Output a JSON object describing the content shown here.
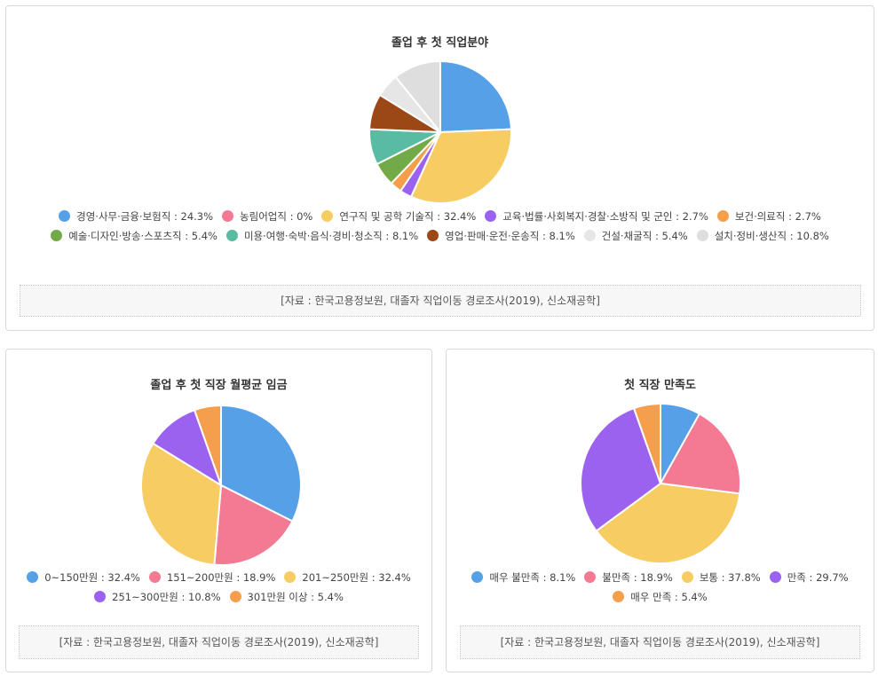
{
  "chart_data": [
    {
      "type": "pie",
      "title": "졸업 후 첫 직업분야",
      "series": [
        {
          "name": "경영·사무·금융·보험직",
          "value": 24.3,
          "color": "#56a0e8"
        },
        {
          "name": "농림어업직",
          "value": 0,
          "color": "#f47a94"
        },
        {
          "name": "연구직 및 공학 기술직",
          "value": 32.4,
          "color": "#f6cc63"
        },
        {
          "name": "교육·법률·사회복지·경찰·소방직 및 군인",
          "value": 2.7,
          "color": "#9b62f0"
        },
        {
          "name": "보건·의료직",
          "value": 2.7,
          "color": "#f59e4c"
        },
        {
          "name": "예술·디자인·방송·스포츠직",
          "value": 5.4,
          "color": "#72aa48"
        },
        {
          "name": "미용·여행·숙박·음식·경비·청소직",
          "value": 8.1,
          "color": "#58bba2"
        },
        {
          "name": "영업·판매·운전·운송직",
          "value": 8.1,
          "color": "#9c4716"
        },
        {
          "name": "건설·채굴직",
          "value": 5.4,
          "color": "#e6e6e6"
        },
        {
          "name": "설치·정비·생산직",
          "value": 10.8,
          "color": "#dedede"
        }
      ],
      "legend_labels": [
        "경영·사무·금융·보험직 : 24.3%",
        "농림어업직 : 0%",
        "연구직 및 공학 기술직 : 32.4%",
        "교육·법률·사회복지·경찰·소방직 및 군인 : 2.7%",
        "보건·의료직 : 2.7%",
        "예술·디자인·방송·스포츠직 : 5.4%",
        "미용·여행·숙박·음식·경비·청소직 : 8.1%",
        "영업·판매·운전·운송직 : 8.1%",
        "건설·채굴직 : 5.4%",
        "설치·정비·생산직 : 10.8%"
      ],
      "legend_position": "bottom",
      "source": "[자료 : 한국고용정보원, 대졸자 직업이동 경로조사(2019), 신소재공학]"
    },
    {
      "type": "pie",
      "title": "졸업 후 첫 직장 월평균 임금",
      "series": [
        {
          "name": "0~150만원",
          "value": 32.4,
          "color": "#56a0e8"
        },
        {
          "name": "151~200만원",
          "value": 18.9,
          "color": "#f47a94"
        },
        {
          "name": "201~250만원",
          "value": 32.4,
          "color": "#f6cc63"
        },
        {
          "name": "251~300만원",
          "value": 10.8,
          "color": "#9b62f0"
        },
        {
          "name": "301만원 이상",
          "value": 5.4,
          "color": "#f59e4c"
        }
      ],
      "legend_labels": [
        "0~150만원 : 32.4%",
        "151~200만원 : 18.9%",
        "201~250만원 : 32.4%",
        "251~300만원 : 10.8%",
        "301만원 이상 : 5.4%"
      ],
      "legend_position": "bottom",
      "source": "[자료 : 한국고용정보원, 대졸자 직업이동 경로조사(2019), 신소재공학]"
    },
    {
      "type": "pie",
      "title": "첫 직장 만족도",
      "series": [
        {
          "name": "매우 불만족",
          "value": 8.1,
          "color": "#56a0e8"
        },
        {
          "name": "불만족",
          "value": 18.9,
          "color": "#f47a94"
        },
        {
          "name": "보통",
          "value": 37.8,
          "color": "#f6cc63"
        },
        {
          "name": "만족",
          "value": 29.7,
          "color": "#9b62f0"
        },
        {
          "name": "매우 만족",
          "value": 5.4,
          "color": "#f59e4c"
        }
      ],
      "legend_labels": [
        "매우 불만족 : 8.1%",
        "불만족 : 18.9%",
        "보통 : 37.8%",
        "만족 : 29.7%",
        "매우 만족 : 5.4%"
      ],
      "legend_position": "bottom",
      "source": "[자료 : 한국고용정보원, 대졸자 직업이동 경로조사(2019), 신소재공학]"
    }
  ]
}
